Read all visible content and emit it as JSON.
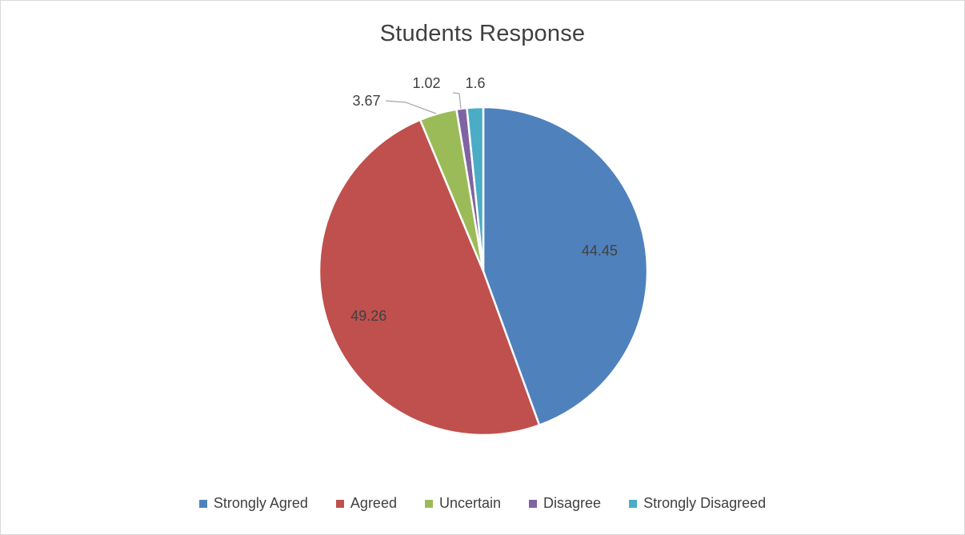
{
  "chart_data": {
    "type": "pie",
    "title": "Students Response",
    "categories": [
      "Strongly Agred",
      "Agreed",
      "Uncertain",
      "Disagree",
      "Strongly Disagreed"
    ],
    "values": [
      44.45,
      49.26,
      3.67,
      1.02,
      1.6
    ],
    "value_labels": [
      "44.45",
      "49.26",
      "3.67",
      "1.02",
      "1.6"
    ],
    "colors": [
      "#4f81bd",
      "#c0504d",
      "#9bbb59",
      "#8064a2",
      "#4bacc6"
    ],
    "legend_position": "bottom",
    "start_angle": "12 o'clock, clockwise"
  }
}
